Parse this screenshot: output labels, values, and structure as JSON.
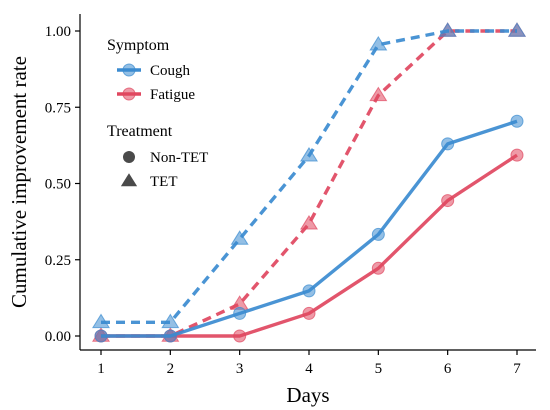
{
  "chart_data": {
    "type": "line",
    "xlabel": "Days",
    "ylabel": "Cumulative improvement rate",
    "x": [
      1,
      2,
      3,
      4,
      5,
      6,
      7
    ],
    "xlim": [
      1,
      7
    ],
    "ylim": [
      0,
      1
    ],
    "x_ticks": [
      "1",
      "2",
      "3",
      "4",
      "5",
      "6",
      "7"
    ],
    "y_ticks": [
      "0.00",
      "0.25",
      "0.50",
      "0.75",
      "1.00"
    ],
    "y_tick_values": [
      0,
      0.25,
      0.5,
      0.75,
      1.0
    ],
    "grid": false,
    "legend_position": "top-left",
    "colors": {
      "Cough": "#3b8bd0",
      "Fatigue": "#e0475f"
    },
    "series": [
      {
        "symptom": "Cough",
        "treatment": "Non-TET",
        "values": [
          0,
          0,
          0.074,
          0.148,
          0.333,
          0.63,
          0.704
        ]
      },
      {
        "symptom": "Cough",
        "treatment": "TET",
        "values": [
          0.045,
          0.045,
          0.318,
          0.591,
          0.955,
          1.0,
          1.0
        ]
      },
      {
        "symptom": "Fatigue",
        "treatment": "Non-TET",
        "values": [
          0,
          0,
          0,
          0.074,
          0.222,
          0.444,
          0.593
        ]
      },
      {
        "symptom": "Fatigue",
        "treatment": "TET",
        "values": [
          0,
          0,
          0.105,
          0.368,
          0.789,
          1.0,
          1.0
        ]
      }
    ],
    "legend": {
      "symptom_title": "Symptom",
      "symptom_items": [
        "Cough",
        "Fatigue"
      ],
      "treatment_title": "Treatment",
      "treatment_items": [
        "Non-TET",
        "TET"
      ]
    }
  }
}
